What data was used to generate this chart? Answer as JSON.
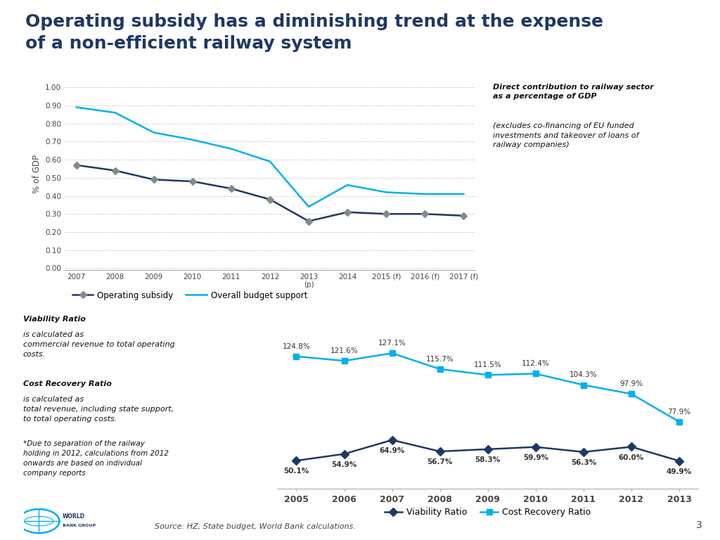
{
  "title_line1": "Operating subsidy has a diminishing trend at the expense",
  "title_line2": "of a non-efficient railway system",
  "title_color": "#1F3864",
  "title_fontsize": 18,
  "chart1_years": [
    "2007",
    "2008",
    "2009",
    "2010",
    "2011",
    "2012",
    "2013\n(p)",
    "2014",
    "2015 (f)",
    "2016 (f)",
    "2017 (f)"
  ],
  "chart1_op_subsidy": [
    0.57,
    0.54,
    0.49,
    0.48,
    0.44,
    0.38,
    0.26,
    0.31,
    0.3,
    0.3,
    0.29
  ],
  "chart1_overall_budget": [
    0.89,
    0.86,
    0.75,
    0.71,
    0.66,
    0.59,
    0.34,
    0.46,
    0.42,
    0.41,
    0.41
  ],
  "chart1_ylabel": "% of GDP",
  "chart1_yticks": [
    0.0,
    0.1,
    0.2,
    0.3,
    0.4,
    0.5,
    0.6,
    0.7,
    0.8,
    0.9,
    1.0
  ],
  "chart1_op_color": "#1F3864",
  "chart1_budget_color": "#00B0F0",
  "chart1_legend1": "Operating subsidy",
  "chart1_legend2": "Overall budget support",
  "chart1_note_bold": "Direct contribution to railway sector\nas a percentage of GDP",
  "chart1_note_normal": "(excludes co-financing of EU funded\ninvestments and takeover of loans of\nrailway companies)",
  "chart2_years": [
    "2005",
    "2006",
    "2007",
    "2008",
    "2009",
    "2010",
    "2011",
    "2012",
    "2013"
  ],
  "chart2_viability": [
    50.1,
    54.9,
    64.9,
    56.7,
    58.3,
    59.9,
    56.3,
    60.0,
    49.9
  ],
  "chart2_cost_recovery": [
    124.8,
    121.6,
    127.1,
    115.7,
    111.5,
    112.4,
    104.3,
    97.9,
    77.9
  ],
  "chart2_viability_color": "#1F3864",
  "chart2_cost_color": "#00B0F0",
  "chart2_legend1": "Viability Ratio",
  "chart2_legend2": "Cost Recovery Ratio",
  "source_text": "Source: HZ, State budget, World Bank calculations.",
  "page_number": "3",
  "background_color": "#FFFFFF"
}
